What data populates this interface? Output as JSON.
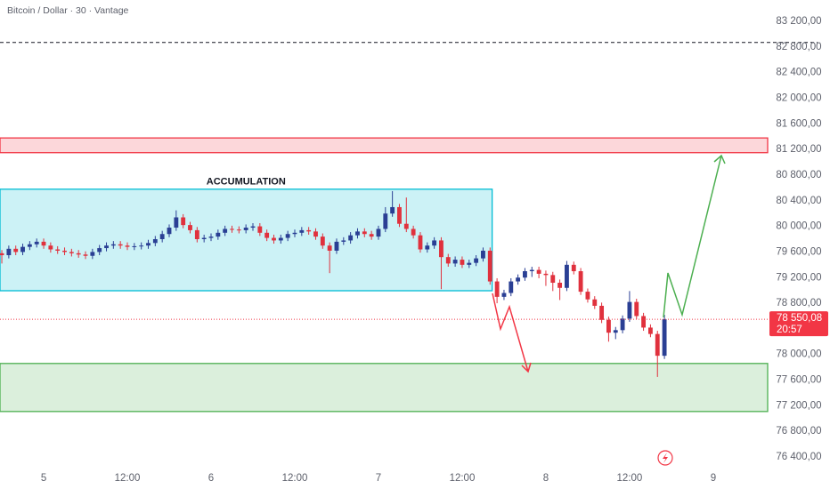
{
  "chart_data": {
    "type": "candlestick",
    "title": "Bitcoin / Dollar · 30 · Vantage",
    "x": [
      -6,
      -5,
      -4,
      -3,
      -2,
      -1,
      0,
      1,
      2,
      3,
      4,
      5,
      6,
      7,
      8,
      9,
      10,
      11,
      12,
      13,
      14,
      15,
      16,
      17,
      18,
      19,
      20,
      21,
      22,
      23,
      24,
      25,
      26,
      27,
      28,
      29,
      30,
      31,
      32,
      33,
      34,
      35,
      36,
      37,
      38,
      39,
      40,
      41,
      42,
      43,
      44,
      45,
      46,
      47,
      48,
      49,
      50,
      51,
      52,
      53,
      54,
      55,
      56,
      57,
      58,
      59,
      60,
      61,
      62,
      63,
      64,
      65,
      66,
      67,
      68,
      69,
      70,
      71,
      72,
      73,
      74,
      75,
      76,
      77,
      78,
      79,
      80,
      81,
      82,
      83,
      84,
      85,
      86,
      87,
      88,
      89
    ],
    "open": [
      79580,
      79550,
      79650,
      79600,
      79680,
      79720,
      79760,
      79700,
      79640,
      79620,
      79600,
      79580,
      79560,
      79540,
      79600,
      79660,
      79700,
      79720,
      79700,
      79680,
      79690,
      79700,
      79740,
      79800,
      79880,
      79980,
      80140,
      80020,
      79940,
      79800,
      79820,
      79840,
      79900,
      79960,
      79950,
      79940,
      79980,
      80000,
      79900,
      79820,
      79780,
      79820,
      79880,
      79900,
      79940,
      79920,
      79840,
      79700,
      79620,
      79760,
      79780,
      79860,
      79920,
      79880,
      79840,
      79960,
      80200,
      80300,
      80040,
      79960,
      79860,
      79640,
      79700,
      79780,
      79520,
      79420,
      79480,
      79400,
      79430,
      79500,
      79620,
      79140,
      78900,
      78960,
      79140,
      79200,
      79300,
      79320,
      79260,
      79240,
      79120,
      79040,
      79400,
      79300,
      78980,
      78860,
      78760,
      78540,
      78340,
      78380,
      78560,
      78820,
      78600,
      78420,
      78320,
      77980
    ],
    "high": [
      79630,
      79700,
      79700,
      79730,
      79770,
      79810,
      79810,
      79750,
      79690,
      79670,
      79650,
      79630,
      79610,
      79650,
      79710,
      79750,
      79770,
      79770,
      79750,
      79740,
      79750,
      79790,
      79850,
      79930,
      80030,
      80250,
      80190,
      80070,
      79990,
      79870,
      79890,
      79950,
      80010,
      80010,
      80000,
      80030,
      80050,
      80050,
      79950,
      79870,
      79870,
      79930,
      79950,
      79990,
      79990,
      79970,
      79890,
      79750,
      79810,
      79830,
      79910,
      79970,
      79970,
      79930,
      80010,
      80300,
      80550,
      80350,
      80450,
      80010,
      79910,
      79750,
      79830,
      79830,
      79570,
      79530,
      79530,
      79480,
      79550,
      79670,
      79670,
      79190,
      79010,
      79190,
      79250,
      79350,
      79370,
      79370,
      79310,
      79290,
      79170,
      79460,
      79450,
      79350,
      79030,
      78910,
      78810,
      78590,
      78430,
      78610,
      78990,
      78870,
      78650,
      78470,
      78370,
      78620
    ],
    "low": [
      79420,
      79500,
      79550,
      79550,
      79630,
      79670,
      79650,
      79590,
      79570,
      79550,
      79530,
      79510,
      79490,
      79490,
      79550,
      79610,
      79650,
      79650,
      79630,
      79630,
      79640,
      79650,
      79690,
      79750,
      79830,
      79930,
      79970,
      79890,
      79750,
      79750,
      79770,
      79790,
      79850,
      79900,
      79890,
      79890,
      79930,
      79850,
      79770,
      79730,
      79730,
      79770,
      79830,
      79850,
      79870,
      79790,
      79650,
      79270,
      79570,
      79710,
      79730,
      79810,
      79830,
      79790,
      79790,
      79910,
      80150,
      79990,
      79910,
      79810,
      79590,
      79590,
      79650,
      79020,
      79370,
      79370,
      79350,
      79350,
      79380,
      79450,
      79090,
      78800,
      78850,
      78910,
      79090,
      79150,
      79210,
      79190,
      79070,
      78990,
      78850,
      78990,
      79250,
      78930,
      78810,
      78710,
      78490,
      78200,
      78240,
      78330,
      78510,
      78550,
      78370,
      78270,
      77650,
      77930
    ],
    "close": [
      79550,
      79650,
      79600,
      79680,
      79720,
      79760,
      79700,
      79640,
      79620,
      79600,
      79580,
      79560,
      79540,
      79600,
      79660,
      79700,
      79720,
      79700,
      79680,
      79690,
      79700,
      79740,
      79800,
      79880,
      79980,
      80140,
      80020,
      79940,
      79800,
      79820,
      79840,
      79900,
      79960,
      79950,
      79940,
      79980,
      80000,
      79900,
      79820,
      79780,
      79820,
      79880,
      79900,
      79940,
      79920,
      79840,
      79700,
      79620,
      79760,
      79780,
      79860,
      79920,
      79880,
      79840,
      79960,
      80200,
      80300,
      80040,
      79960,
      79860,
      79640,
      79700,
      79780,
      79520,
      79420,
      79480,
      79400,
      79430,
      79500,
      79620,
      79140,
      78900,
      78960,
      79140,
      79200,
      79300,
      79320,
      79260,
      79240,
      79120,
      79040,
      79400,
      79300,
      78980,
      78860,
      78760,
      78540,
      78340,
      78380,
      78560,
      78820,
      78600,
      78420,
      78320,
      77980,
      78550.08
    ],
    "up_color": "#2a3f94",
    "down_color": "#e0313d",
    "last_price_label": "78 550,08",
    "countdown": "20:57",
    "last_color": "#f23645",
    "xlim": [
      -6.26,
      103.8
    ],
    "xticks": [
      {
        "value": 0,
        "label": "5"
      },
      {
        "value": 12,
        "label": "12:00"
      },
      {
        "value": 24,
        "label": "6"
      },
      {
        "value": 36,
        "label": "12:00"
      },
      {
        "value": 48,
        "label": "7"
      },
      {
        "value": 60,
        "label": "12:00"
      },
      {
        "value": 72,
        "label": "8"
      },
      {
        "value": 84,
        "label": "12:00"
      },
      {
        "value": 96,
        "label": "9"
      }
    ],
    "ylim": [
      76400,
      83200
    ],
    "yticks": [
      {
        "value": 83200,
        "label": "83 200,00"
      },
      {
        "value": 82800,
        "label": "82 800,00"
      },
      {
        "value": 82400,
        "label": "82 400,00"
      },
      {
        "value": 82000,
        "label": "82 000,00"
      },
      {
        "value": 81600,
        "label": "81 600,00"
      },
      {
        "value": 81200,
        "label": "81 200,00"
      },
      {
        "value": 80800,
        "label": "80 800,00"
      },
      {
        "value": 80400,
        "label": "80 400,00"
      },
      {
        "value": 80000,
        "label": "80 000,00"
      },
      {
        "value": 79600,
        "label": "79 600,00"
      },
      {
        "value": 79200,
        "label": "79 200,00"
      },
      {
        "value": 78800,
        "label": "78 800,00"
      },
      {
        "value": 78000,
        "label": "78 000,00"
      },
      {
        "value": 77600,
        "label": "77 600,00"
      },
      {
        "value": 77200,
        "label": "77 200,00"
      },
      {
        "value": 76800,
        "label": "76 800,00"
      },
      {
        "value": 76400,
        "label": "76 400,00"
      }
    ],
    "hline": 82870,
    "zones": [
      {
        "top": 81380,
        "bottom": 81150,
        "color": "#f23645"
      },
      {
        "top": 80580,
        "bottom": 78995,
        "x_end": 64.3,
        "color": "#00bcd4",
        "label": "ACCUMULATION"
      },
      {
        "top": 77860,
        "bottom": 77110,
        "color": "#4caf50"
      }
    ]
  }
}
